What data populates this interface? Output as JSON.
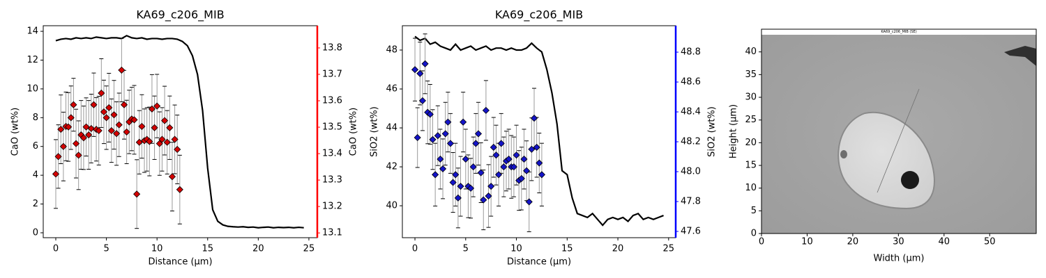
{
  "chart_data": [
    {
      "type": "line",
      "title": "KA69_c206_MIB",
      "xlabel": "Distance (µm)",
      "ylabel": "CaO (wt%)",
      "y2label": "CaO (wt%)",
      "y2color": "#ff0000",
      "x": [
        0,
        0.5,
        1,
        1.5,
        2,
        2.5,
        3,
        3.5,
        4,
        4.5,
        5,
        5.5,
        6,
        6.5,
        7,
        7.5,
        8,
        8.5,
        9,
        9.5,
        10,
        10.5,
        11,
        11.5,
        12,
        12.5,
        13,
        13.5,
        14,
        14.5,
        15,
        15.5,
        16,
        16.5,
        17,
        17.5,
        18,
        18.5,
        19,
        19.5,
        20,
        20.5,
        21,
        21.5,
        22,
        22.5,
        23,
        23.5,
        24,
        24.5
      ],
      "series": [
        {
          "color": "#000000",
          "values": [
            13.35,
            13.45,
            13.5,
            13.45,
            13.55,
            13.5,
            13.55,
            13.5,
            13.6,
            13.55,
            13.5,
            13.55,
            13.55,
            13.5,
            13.7,
            13.55,
            13.5,
            13.55,
            13.45,
            13.5,
            13.5,
            13.45,
            13.5,
            13.5,
            13.45,
            13.3,
            13.0,
            12.3,
            11.0,
            8.5,
            4.5,
            1.6,
            0.8,
            0.55,
            0.45,
            0.42,
            0.4,
            0.42,
            0.38,
            0.4,
            0.35,
            0.38,
            0.4,
            0.35,
            0.38,
            0.36,
            0.38,
            0.35,
            0.38,
            0.35
          ]
        },
        {
          "marker": "diamond",
          "color": "#d40000",
          "axis": "y2",
          "x": [
            0,
            0.25,
            0.5,
            0.75,
            1,
            1.25,
            1.5,
            1.75,
            2,
            2.25,
            2.5,
            2.75,
            3,
            3.25,
            3.5,
            3.75,
            4,
            4.25,
            4.5,
            4.75,
            5,
            5.25,
            5.5,
            5.75,
            6,
            6.25,
            6.5,
            6.75,
            7,
            7.25,
            7.5,
            7.75,
            8,
            8.25,
            8.5,
            8.75,
            9,
            9.25,
            9.5,
            9.75,
            10,
            10.25,
            10.5,
            10.75,
            11,
            11.25,
            11.5,
            11.75,
            12,
            12.25
          ],
          "values": [
            13.323,
            13.389,
            13.492,
            13.427,
            13.503,
            13.501,
            13.536,
            13.585,
            13.438,
            13.394,
            13.471,
            13.46,
            13.501,
            13.471,
            13.495,
            13.585,
            13.492,
            13.487,
            13.629,
            13.558,
            13.536,
            13.574,
            13.487,
            13.547,
            13.476,
            13.509,
            13.716,
            13.585,
            13.482,
            13.52,
            13.531,
            13.528,
            13.247,
            13.443,
            13.503,
            13.449,
            13.454,
            13.446,
            13.569,
            13.498,
            13.58,
            13.438,
            13.454,
            13.525,
            13.443,
            13.498,
            13.313,
            13.454,
            13.416,
            13.264
          ],
          "errors": [
            0.13,
            0.12,
            0.13,
            0.13,
            0.13,
            0.13,
            0.12,
            0.1,
            0.13,
            0.13,
            0.13,
            0.12,
            0.11,
            0.13,
            0.13,
            0.12,
            0.12,
            0.13,
            0.13,
            0.12,
            0.12,
            0.13,
            0.12,
            0.13,
            0.12,
            0.12,
            0.12,
            0.13,
            0.12,
            0.12,
            0.12,
            0.13,
            0.13,
            0.12,
            0.12,
            0.12,
            0.12,
            0.13,
            0.13,
            0.12,
            0.12,
            0.12,
            0.12,
            0.13,
            0.12,
            0.12,
            0.13,
            0.13,
            0.13,
            0.13
          ]
        }
      ],
      "xlim": [
        -1.24,
        25.83
      ],
      "xticks": [
        0,
        5,
        10,
        15,
        20,
        25
      ],
      "ylim": [
        -0.34,
        14.39
      ],
      "yticks": [
        0,
        2,
        4,
        6,
        8,
        10,
        12,
        14
      ],
      "y2lim": [
        13.082,
        13.884
      ],
      "y2ticks": [
        13.1,
        13.2,
        13.3,
        13.4,
        13.5,
        13.6,
        13.7,
        13.8
      ]
    },
    {
      "type": "line",
      "title": "KA69_c206_MIB",
      "xlabel": "Distance (µm)",
      "ylabel": "SiO2 (wt%)",
      "y2label": "SiO2 (wt%)",
      "y2color": "#0000ff",
      "x": [
        0,
        0.5,
        1,
        1.5,
        2,
        2.5,
        3,
        3.5,
        4,
        4.5,
        5,
        5.5,
        6,
        6.5,
        7,
        7.5,
        8,
        8.5,
        9,
        9.5,
        10,
        10.5,
        11,
        11.5,
        12,
        12.5,
        13,
        13.5,
        14,
        14.5,
        15,
        15.5,
        16,
        16.5,
        17,
        17.5,
        18,
        18.5,
        19,
        19.5,
        20,
        20.5,
        21,
        21.5,
        22,
        22.5,
        23,
        23.5,
        24,
        24.5
      ],
      "series": [
        {
          "color": "#000000",
          "values": [
            48.7,
            48.5,
            48.6,
            48.3,
            48.4,
            48.2,
            48.1,
            48.0,
            48.3,
            48.0,
            48.1,
            48.2,
            48.0,
            48.1,
            48.2,
            48.0,
            48.1,
            48.1,
            48.0,
            48.1,
            48.0,
            48.0,
            48.1,
            48.35,
            48.1,
            47.9,
            47.0,
            45.8,
            44.2,
            41.8,
            41.6,
            40.4,
            39.6,
            39.5,
            39.4,
            39.6,
            39.3,
            39.0,
            39.3,
            39.4,
            39.3,
            39.4,
            39.2,
            39.5,
            39.6,
            39.3,
            39.4,
            39.3,
            39.4,
            39.5
          ]
        },
        {
          "marker": "diamond",
          "color": "#1414c8",
          "axis": "y2",
          "x": [
            0,
            0.25,
            0.5,
            0.75,
            1,
            1.25,
            1.5,
            1.75,
            2,
            2.25,
            2.5,
            2.75,
            3,
            3.25,
            3.5,
            3.75,
            4,
            4.25,
            4.5,
            4.75,
            5,
            5.25,
            5.5,
            5.75,
            6,
            6.25,
            6.5,
            6.75,
            7,
            7.25,
            7.5,
            7.75,
            8,
            8.25,
            8.5,
            8.75,
            9,
            9.25,
            9.5,
            9.75,
            10,
            10.25,
            10.5,
            10.75,
            11,
            11.25,
            11.5,
            11.75,
            12,
            12.25,
            12.5
          ],
          "values": [
            48.683,
            48.228,
            48.657,
            48.475,
            48.722,
            48.397,
            48.384,
            48.215,
            47.98,
            48.241,
            48.084,
            48.019,
            48.254,
            48.332,
            48.189,
            47.928,
            47.98,
            47.824,
            47.902,
            48.332,
            48.084,
            47.902,
            47.889,
            48.032,
            48.189,
            48.254,
            47.993,
            47.811,
            48.41,
            47.837,
            47.902,
            48.163,
            48.111,
            47.98,
            48.189,
            48.032,
            48.071,
            48.084,
            48.032,
            48.032,
            48.111,
            47.941,
            47.954,
            48.084,
            48.006,
            47.798,
            48.15,
            48.358,
            48.163,
            48.058,
            47.98
          ],
          "errors": [
            0.21,
            0.2,
            0.21,
            0.2,
            0.2,
            0.21,
            0.2,
            0.2,
            0.21,
            0.2,
            0.2,
            0.2,
            0.21,
            0.2,
            0.2,
            0.2,
            0.21,
            0.2,
            0.2,
            0.2,
            0.2,
            0.21,
            0.2,
            0.2,
            0.2,
            0.21,
            0.2,
            0.2,
            0.2,
            0.21,
            0.2,
            0.2,
            0.2,
            0.21,
            0.2,
            0.2,
            0.2,
            0.2,
            0.21,
            0.2,
            0.2,
            0.2,
            0.21,
            0.2,
            0.2,
            0.2,
            0.21,
            0.2,
            0.2,
            0.2,
            0.21
          ]
        }
      ],
      "xlim": [
        -1.24,
        25.7
      ],
      "xticks": [
        0,
        5,
        10,
        15,
        20,
        25
      ],
      "ylim": [
        38.36,
        49.25
      ],
      "yticks": [
        40,
        42,
        44,
        46,
        48
      ],
      "y2lim": [
        47.558,
        48.977
      ],
      "y2ticks": [
        47.6,
        47.8,
        {
          "value": 48,
          "label": "48.0"
        },
        48.2,
        48.4,
        48.6,
        48.8
      ]
    },
    {
      "type": "image",
      "title": "KA69_c206_MIB (SE)",
      "xlabel": "Width (µm)",
      "ylabel": "Height (µm)",
      "xlim": [
        0,
        60.2
      ],
      "xticks": [
        0,
        10,
        20,
        30,
        40,
        50
      ],
      "ylim": [
        0,
        45
      ],
      "yticks": [
        0,
        5,
        10,
        15,
        20,
        25,
        30,
        35,
        40
      ]
    }
  ]
}
